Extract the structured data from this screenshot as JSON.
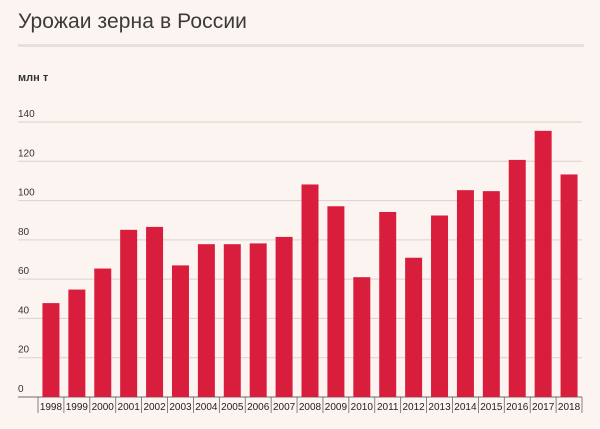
{
  "title": "Урожаи зерна в России",
  "chart_data": {
    "type": "bar",
    "ylabel": "млн т",
    "ylim": [
      0,
      140
    ],
    "yticks": [
      0,
      20,
      40,
      60,
      80,
      100,
      120,
      140
    ],
    "grid": true,
    "categories": [
      "1998",
      "1999",
      "2000",
      "2001",
      "2002",
      "2003",
      "2004",
      "2005",
      "2006",
      "2007",
      "2008",
      "2009",
      "2010",
      "2011",
      "2012",
      "2013",
      "2014",
      "2015",
      "2016",
      "2017",
      "2018"
    ],
    "values": [
      47.8,
      54.7,
      65.4,
      85.1,
      86.6,
      67.0,
      77.8,
      77.8,
      78.2,
      81.5,
      108.2,
      97.1,
      61.0,
      94.2,
      70.9,
      92.4,
      105.3,
      104.8,
      120.7,
      135.5,
      113.3
    ],
    "bar_color": "#d91e3d"
  }
}
